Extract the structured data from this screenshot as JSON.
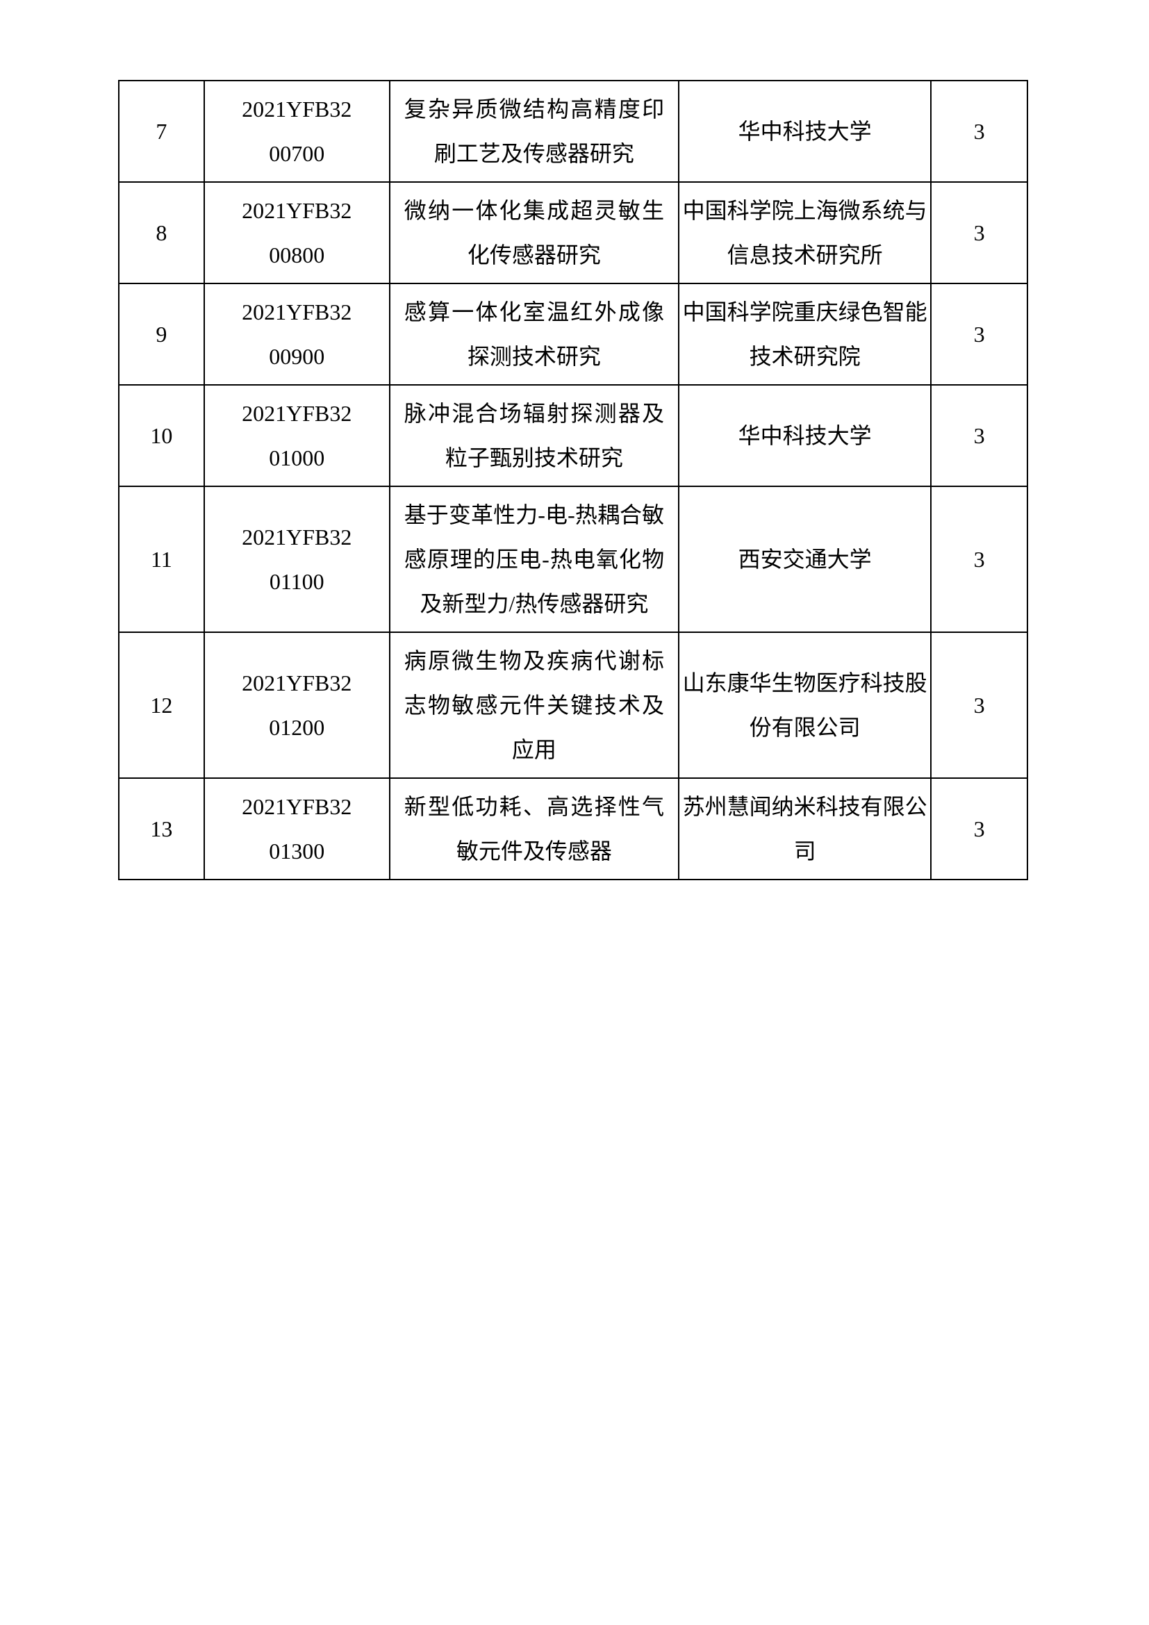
{
  "table": {
    "column_widths": {
      "num": 115,
      "code": 250,
      "title": 390,
      "org": 340,
      "count": 130
    },
    "border_color": "#000000",
    "background_color": "#ffffff",
    "text_color": "#000000",
    "font_size": 32,
    "font_family": "SimSun",
    "rows": [
      {
        "num": "7",
        "code_line1": "2021YFB32",
        "code_line2": "00700",
        "title": "复杂异质微结构高精度印刷工艺及传感器研究",
        "org": "华中科技大学",
        "count": "3"
      },
      {
        "num": "8",
        "code_line1": "2021YFB32",
        "code_line2": "00800",
        "title": "微纳一体化集成超灵敏生化传感器研究",
        "org": "中国科学院上海微系统与信息技术研究所",
        "count": "3"
      },
      {
        "num": "9",
        "code_line1": "2021YFB32",
        "code_line2": "00900",
        "title": "感算一体化室温红外成像探测技术研究",
        "org": "中国科学院重庆绿色智能技术研究院",
        "count": "3"
      },
      {
        "num": "10",
        "code_line1": "2021YFB32",
        "code_line2": "01000",
        "title": "脉冲混合场辐射探测器及粒子甄别技术研究",
        "org": "华中科技大学",
        "count": "3"
      },
      {
        "num": "11",
        "code_line1": "2021YFB32",
        "code_line2": "01100",
        "title": "基于变革性力-电-热耦合敏感原理的压电-热电氧化物及新型力/热传感器研究",
        "org": "西安交通大学",
        "count": "3"
      },
      {
        "num": "12",
        "code_line1": "2021YFB32",
        "code_line2": "01200",
        "title": "病原微生物及疾病代谢标志物敏感元件关键技术及应用",
        "org": "山东康华生物医疗科技股份有限公司",
        "count": "3"
      },
      {
        "num": "13",
        "code_line1": "2021YFB32",
        "code_line2": "01300",
        "title": "新型低功耗、高选择性气敏元件及传感器",
        "org": "苏州慧闻纳米科技有限公司",
        "count": "3"
      }
    ]
  }
}
